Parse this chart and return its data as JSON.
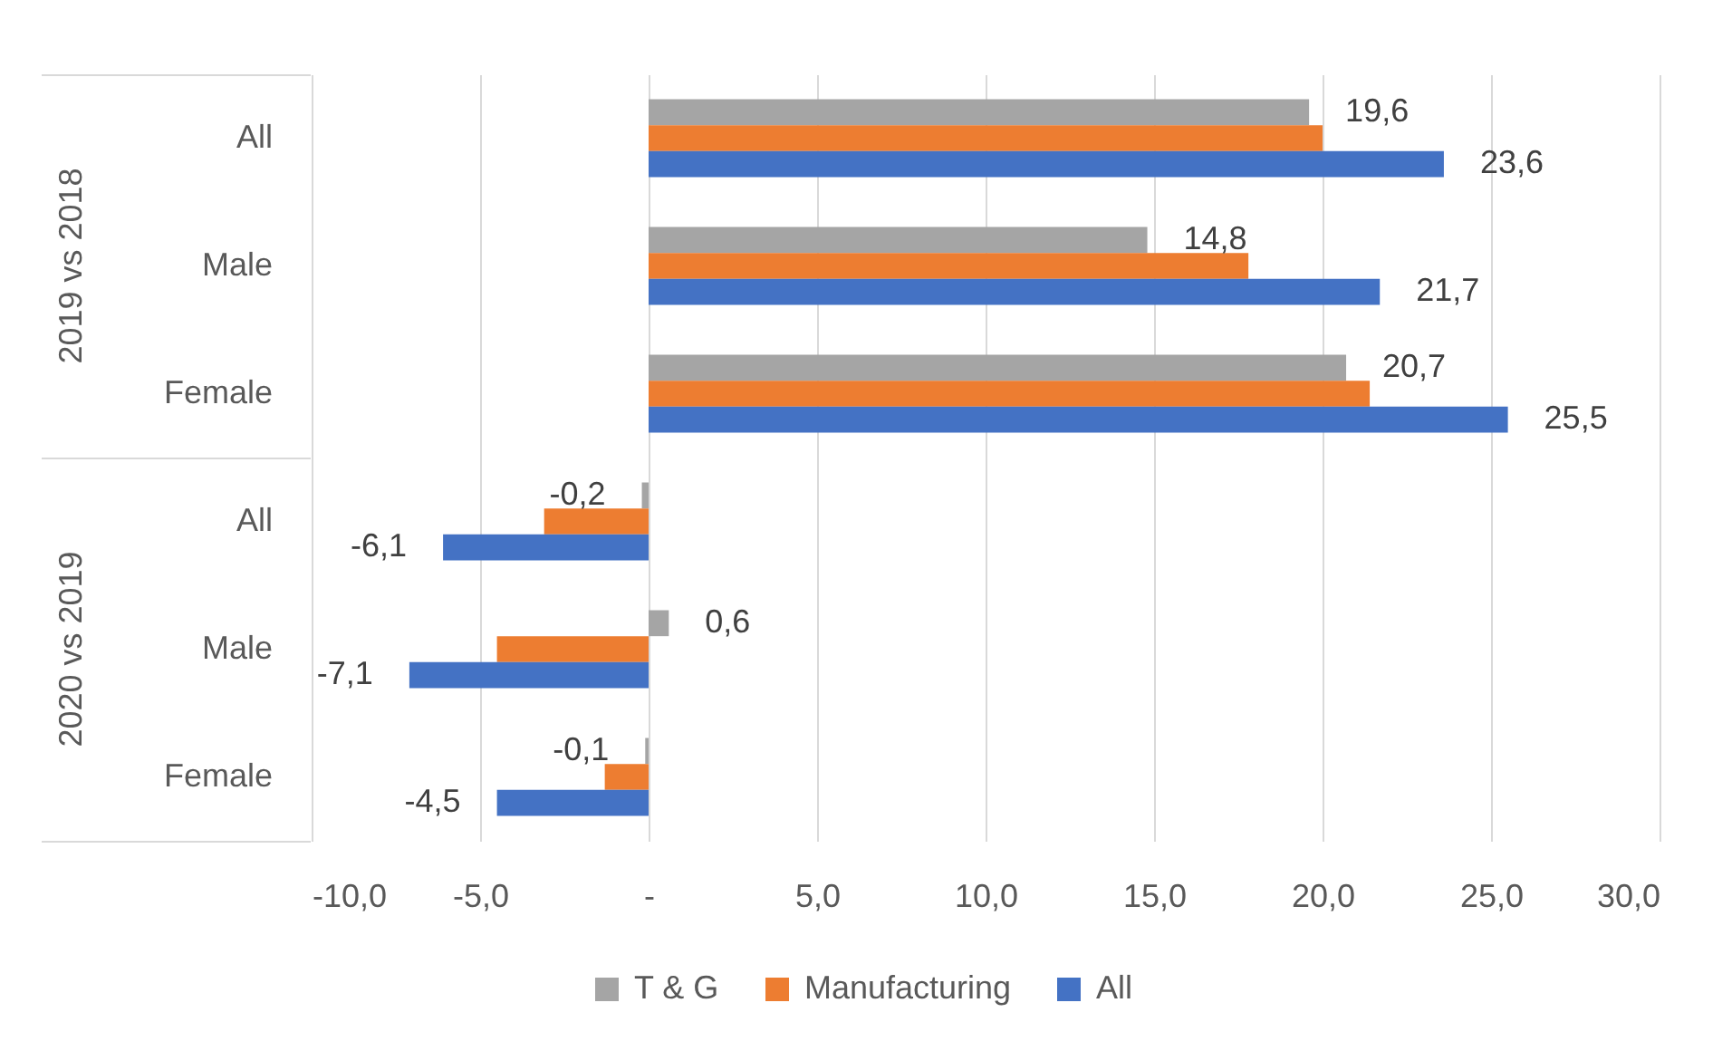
{
  "chart_data": {
    "type": "bar",
    "orientation": "horizontal",
    "categories": [
      "All",
      "Male",
      "Female",
      "All",
      "Male",
      "Female"
    ],
    "annotations": [
      "2019 vs 2018",
      "2020 vs 2019"
    ],
    "series": [
      {
        "name": "T & G",
        "color": "#a5a5a5",
        "values": [
          19.6,
          14.8,
          20.7,
          -0.2,
          0.6,
          -0.1
        ],
        "value_labels": [
          "19,6",
          "14,8",
          "20,7",
          "-0,2",
          "0,6",
          "-0,1"
        ]
      },
      {
        "name": "Manufacturing",
        "color": "#ed7d31",
        "values": [
          20.0,
          17.8,
          21.4,
          -3.1,
          -4.5,
          -1.3
        ]
      },
      {
        "name": "All",
        "color": "#4472c4",
        "values": [
          23.6,
          21.7,
          25.5,
          -6.1,
          -7.1,
          -4.5
        ],
        "value_labels": [
          "23,6",
          "21,7",
          "25,5",
          "-6,1",
          "-7,1",
          "-4,5"
        ]
      }
    ],
    "xlim": [
      -10,
      30
    ],
    "xticks": [
      {
        "value": -10,
        "label": "-10,0"
      },
      {
        "value": -5,
        "label": "-5,0"
      },
      {
        "value": 0,
        "label": "-"
      },
      {
        "value": 5,
        "label": "5,0"
      },
      {
        "value": 10,
        "label": "10,0"
      },
      {
        "value": 15,
        "label": "15,0"
      },
      {
        "value": 20,
        "label": "20,0"
      },
      {
        "value": 25,
        "label": "25,0"
      },
      {
        "value": 30,
        "label": "30,0"
      }
    ],
    "grid": "x",
    "legend": "bottom"
  }
}
